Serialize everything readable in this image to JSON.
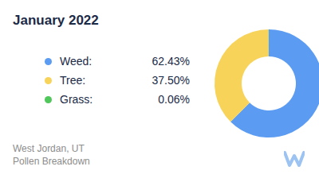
{
  "chart_data": {
    "type": "pie",
    "title": "January 2022",
    "categories": [
      "Weed:",
      "Tree:",
      "Grass:"
    ],
    "values": [
      62.43,
      37.5,
      0.06
    ],
    "value_labels": [
      "62.43%",
      "37.50%",
      "0.06%"
    ],
    "colors": [
      "#5b9cf2",
      "#f8d35a",
      "#4fc75a"
    ],
    "annotations": [
      "West Jordan, UT",
      "Pollen Breakdown"
    ]
  }
}
